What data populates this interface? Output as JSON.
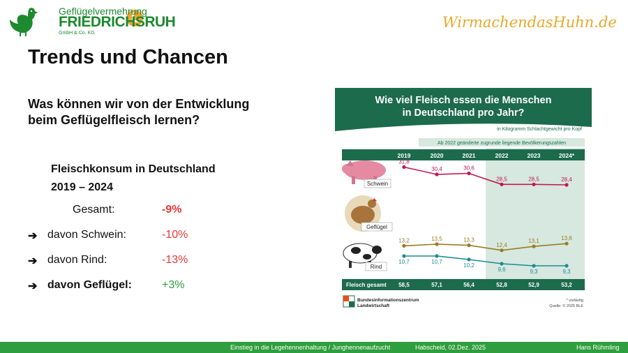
{
  "logo": {
    "line1": "Geflügelvermehrung",
    "line2": "FRIEDRICHSRUH",
    "line3": "GmbH & Co. KG",
    "hen_icon": "hen-icon",
    "seal_icon": "lohmann-seal-icon"
  },
  "brand_slogan": "WirmachendasHuhn.de",
  "title": "Trends und Chancen",
  "subtitle": "Was können wir von der Entwicklung beim Geflügelfleisch lernen?",
  "consumption": {
    "heading_line1": "Fleischkonsum in Deutschland",
    "heading_line2": "2019 – 2024",
    "rows": [
      {
        "label": "Gesamt:",
        "value": "-9%",
        "arrow": false,
        "bold": false
      },
      {
        "label": "davon Schwein:",
        "value": "-10%",
        "arrow": true,
        "bold": false
      },
      {
        "label": "davon Rind:",
        "value": "-13%",
        "arrow": true,
        "bold": false
      },
      {
        "label": "davon Geflügel:",
        "value": "+3%",
        "arrow": true,
        "bold": true
      }
    ],
    "arrow_glyph": "➔",
    "colors": {
      "negative": "#e53935",
      "positive": "#2e9e3e"
    }
  },
  "infographic": {
    "title_line1": "Wie viel Fleisch essen die Menschen",
    "title_line2": "in Deutschland pro Jahr?",
    "unit_note": "in Kilogramm Schlachtgewicht pro Kopf",
    "band_note": "Ab 2022 geänderte zugrunde liegende Bevölkerungszahlen",
    "total_label": "Fleisch gesamt",
    "preliminary_note": "* vorläufig",
    "source": "Quelle: © 2025 BLE",
    "org_line1": "Bundesinformationszentrum",
    "org_line2": "Landwirtschaft",
    "colors": {
      "header": "#1c6b4c",
      "pork": "#c0184f",
      "poultry": "#9a7b22",
      "beef": "#1e8a96"
    }
  },
  "chart_data": {
    "type": "line",
    "categories": [
      "2019",
      "2020",
      "2021",
      "2022",
      "2023",
      "2024*"
    ],
    "series": [
      {
        "name": "Schwein",
        "values": [
          31.8,
          30.4,
          30.6,
          28.5,
          28.5,
          28.4
        ],
        "labels": [
          "31,8",
          "30,4",
          "30,6",
          "28,5",
          "28,5",
          "28,4"
        ]
      },
      {
        "name": "Geflügel",
        "values": [
          13.2,
          13.5,
          13.3,
          12.4,
          13.1,
          13.6
        ],
        "labels": [
          "13,2",
          "13,5",
          "13,3",
          "12,4",
          "13,1",
          "13,6"
        ]
      },
      {
        "name": "Rind",
        "values": [
          10.7,
          10.7,
          10.2,
          9.6,
          9.3,
          9.3
        ],
        "labels": [
          "10,7",
          "10,7",
          "10,2",
          "9,6",
          "9,3",
          "9,3"
        ]
      }
    ],
    "totals": {
      "name": "Fleisch gesamt",
      "values": [
        58.5,
        57.1,
        56.4,
        52.8,
        52.9,
        53.2
      ],
      "labels": [
        "58,5",
        "57,1",
        "56,4",
        "52,8",
        "52,9",
        "53,2"
      ]
    }
  },
  "footer": {
    "course": "Einstieg in die Legehennenhaltung / Junghennenaufzucht",
    "place_date": "Habscheid, 02.Dez. 2025",
    "author": "Hans Rühmling"
  }
}
